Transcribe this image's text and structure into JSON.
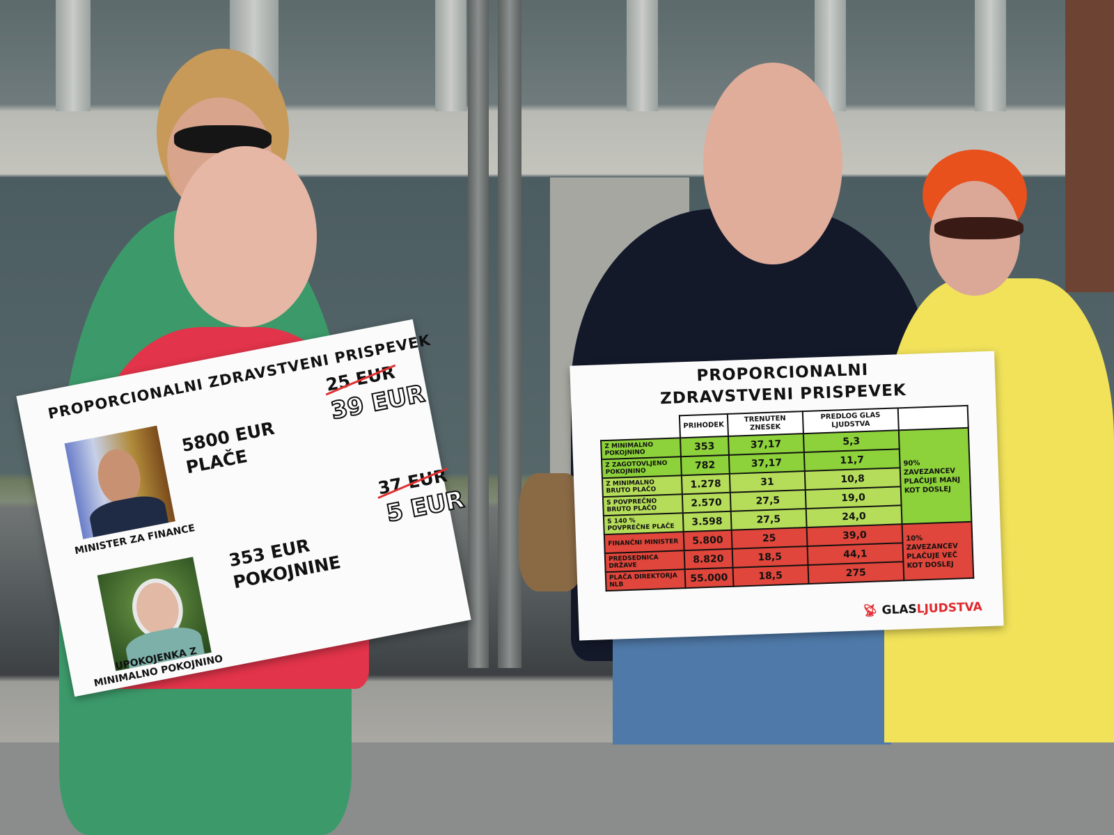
{
  "scene": {
    "description_colors": {
      "sign_green": "#8dd23a",
      "sign_light_green": "#b5dd5a",
      "sign_red": "#e0463b",
      "strike_red": "#e03030"
    }
  },
  "left_sign": {
    "title": "PROPORCIONALNI  ZDRAVSTVENI PRISPEVEK",
    "rows": [
      {
        "photo_caption": "MINISTER ZA FINANCE",
        "income": "5800 EUR",
        "income_label": "PLAČE",
        "old": "25 EUR",
        "new": "39 EUR"
      },
      {
        "photo_caption": "UPOKOJENKA Z MINIMALNO POKOJNINO",
        "income": "353 EUR",
        "income_label": "POKOJNINE",
        "old": "37 EUR",
        "new": "5 EUR"
      }
    ]
  },
  "right_sign": {
    "title_line1": "PROPORCIONALNI",
    "title_line2": "ZDRAVSTVENI PRISPEVEK",
    "columns": [
      "PRIHODEK",
      "TRENUTEN ZNESEK",
      "PREDLOG GLAS LJUDSTVA"
    ],
    "rows": [
      {
        "label": "Z MINIMALNO POKOJNINO",
        "income": "353",
        "current": "37,17",
        "proposal": "5,3",
        "tone": "g"
      },
      {
        "label": "Z ZAGOTOVLJENO POKOJNINO",
        "income": "782",
        "current": "37,17",
        "proposal": "11,7",
        "tone": "g"
      },
      {
        "label": "Z MINIMALNO BRUTO PLAČO",
        "income": "1.278",
        "current": "31",
        "proposal": "10,8",
        "tone": "lg"
      },
      {
        "label": "S POVPREČNO BRUTO PLAČO",
        "income": "2.570",
        "current": "27,5",
        "proposal": "19,0",
        "tone": "lg"
      },
      {
        "label": "S 140 % POVPREČNE PLAČE",
        "income": "3.598",
        "current": "27,5",
        "proposal": "24,0",
        "tone": "lg"
      },
      {
        "label": "FINANČNI MINISTER",
        "income": "5.800",
        "current": "25",
        "proposal": "39,0",
        "tone": "r"
      },
      {
        "label": "PREDSEDNICA DRŽAVE",
        "income": "8.820",
        "current": "18,5",
        "proposal": "44,1",
        "tone": "r"
      },
      {
        "label": "PLAČA DIREKTORJA NLB",
        "income": "55.000",
        "current": "18,5",
        "proposal": "275",
        "tone": "r"
      }
    ],
    "note_green": "90% ZAVEZANCEV PLAČUJE MANJ KOT DOSLEJ",
    "note_red": "10% ZAVEZANCEV PLAČUJE VEČ KOT DOSLEJ",
    "logo_part1": "GLAS",
    "logo_part2": "LJUDSTVA"
  }
}
